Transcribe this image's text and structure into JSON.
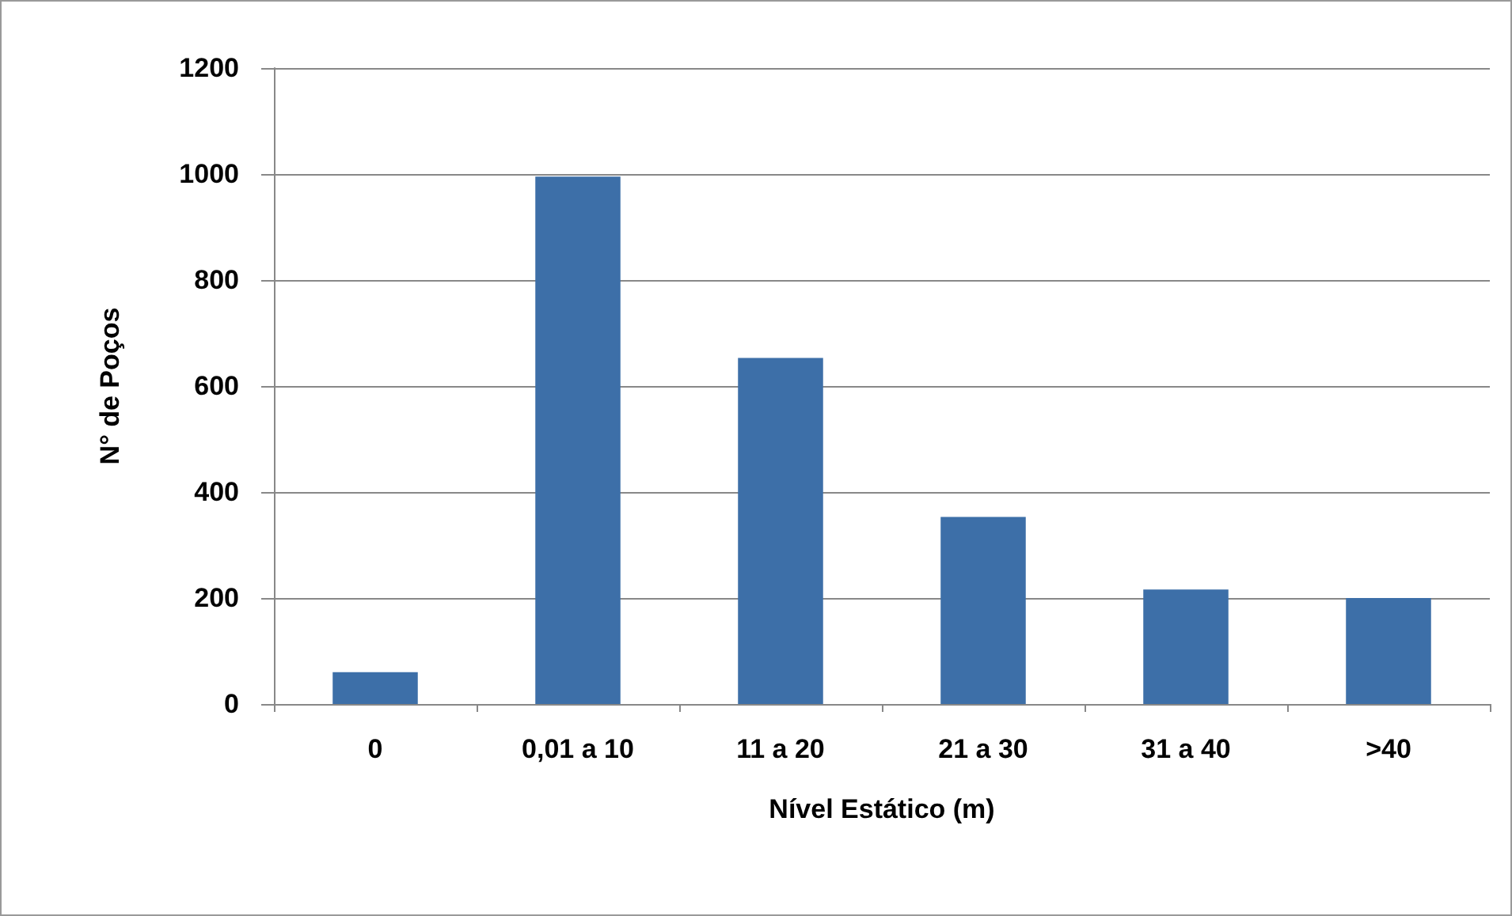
{
  "chart_data": {
    "type": "bar",
    "xlabel": "Nível Estático (m)",
    "ylabel": "N° de Poços",
    "categories": [
      "0",
      "0,01 a 10",
      "11 a 20",
      "21 a 30",
      "31 a 40",
      ">40"
    ],
    "values": [
      60,
      995,
      653,
      353,
      216,
      200
    ],
    "color": "#3d6fa8",
    "ylim": [
      0,
      1200
    ],
    "yticks": [
      0,
      200,
      400,
      600,
      800,
      1000,
      1200
    ],
    "grid": "y"
  }
}
